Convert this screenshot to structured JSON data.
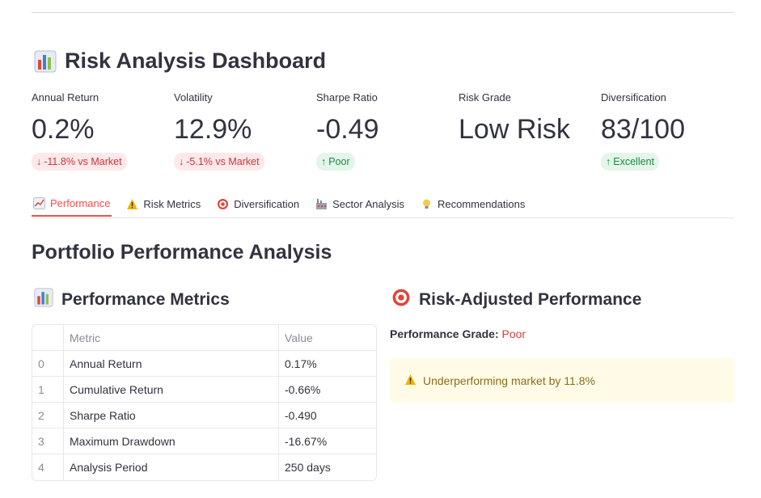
{
  "dashboard": {
    "title": "Risk Analysis Dashboard"
  },
  "metrics": [
    {
      "label": "Annual Return",
      "value": "0.2%",
      "delta": "-11.8% vs Market",
      "direction": "down",
      "tone": "negative"
    },
    {
      "label": "Volatility",
      "value": "12.9%",
      "delta": "-5.1% vs Market",
      "direction": "down",
      "tone": "negative"
    },
    {
      "label": "Sharpe Ratio",
      "value": "-0.49",
      "delta": "Poor",
      "direction": "up",
      "tone": "positive"
    },
    {
      "label": "Risk Grade",
      "value": "Low Risk",
      "delta": "",
      "direction": "",
      "tone": ""
    },
    {
      "label": "Diversification",
      "value": "83/100",
      "delta": "Excellent",
      "direction": "up",
      "tone": "positive"
    }
  ],
  "tabs": [
    {
      "label": "Performance",
      "icon": "chart-increasing-icon",
      "active": true
    },
    {
      "label": "Risk Metrics",
      "icon": "warning-icon",
      "active": false
    },
    {
      "label": "Diversification",
      "icon": "target-icon",
      "active": false
    },
    {
      "label": "Sector Analysis",
      "icon": "factory-icon",
      "active": false
    },
    {
      "label": "Recommendations",
      "icon": "lightbulb-icon",
      "active": false
    }
  ],
  "section": {
    "title": "Portfolio Performance Analysis",
    "left_title": "Performance Metrics",
    "right_title": "Risk-Adjusted Performance"
  },
  "table": {
    "headers": [
      "",
      "Metric",
      "Value"
    ],
    "rows": [
      [
        "0",
        "Annual Return",
        "0.17%"
      ],
      [
        "1",
        "Cumulative Return",
        "-0.66%"
      ],
      [
        "2",
        "Sharpe Ratio",
        "-0.490"
      ],
      [
        "3",
        "Maximum Drawdown",
        "-16.67%"
      ],
      [
        "4",
        "Analysis Period",
        "250 days"
      ]
    ]
  },
  "grade": {
    "label": "Performance Grade:",
    "value": "Poor"
  },
  "alert": {
    "text": "Underperforming market by 11.8%",
    "icon": "warning-icon"
  },
  "colors": {
    "accent": "#ff4b4b",
    "negative": "#d4323a",
    "positive": "#1d8a3e",
    "warning_bg": "#fffbe6"
  }
}
